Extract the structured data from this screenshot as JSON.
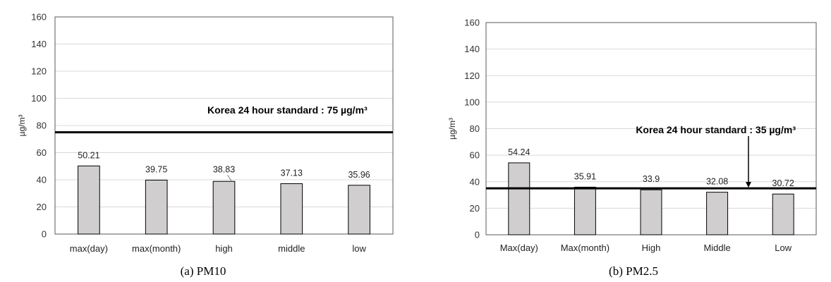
{
  "chart_data": [
    {
      "type": "bar",
      "caption": "(a)  PM10",
      "ylabel": "µg/m³",
      "ylim": [
        0,
        160
      ],
      "yticks": [
        0,
        20,
        40,
        60,
        80,
        100,
        120,
        140,
        160
      ],
      "categories": [
        "max(day)",
        "max(month)",
        "high",
        "middle",
        "low"
      ],
      "values": [
        50.21,
        39.75,
        38.83,
        37.13,
        35.96
      ],
      "data_labels": [
        "50.21",
        "39.75",
        "38.83",
        "37.13",
        "35.96"
      ],
      "reference_line": {
        "value": 75,
        "label": "Korea 24 hour standard : 75 µg/m³"
      },
      "grid": true,
      "colors": {
        "bar_fill": "#d0cece",
        "bar_stroke": "#000000",
        "grid": "#d9d9d9",
        "reference": "#000000"
      }
    },
    {
      "type": "bar",
      "caption": "(b)  PM2.5",
      "ylabel": "µg/m³",
      "ylim": [
        0,
        160
      ],
      "yticks": [
        0,
        20,
        40,
        60,
        80,
        100,
        120,
        140,
        160
      ],
      "categories": [
        "Max(day)",
        "Max(month)",
        "High",
        "Middle",
        "Low"
      ],
      "values": [
        54.24,
        35.91,
        33.9,
        32.08,
        30.72
      ],
      "data_labels": [
        "54.24",
        "35.91",
        "33.9",
        "32.08",
        "30.72"
      ],
      "reference_line": {
        "value": 35,
        "label": "Korea 24 hour standard : 35 µg/m³"
      },
      "grid": true,
      "colors": {
        "bar_fill": "#d0cece",
        "bar_stroke": "#000000",
        "grid": "#d9d9d9",
        "reference": "#000000"
      }
    }
  ]
}
